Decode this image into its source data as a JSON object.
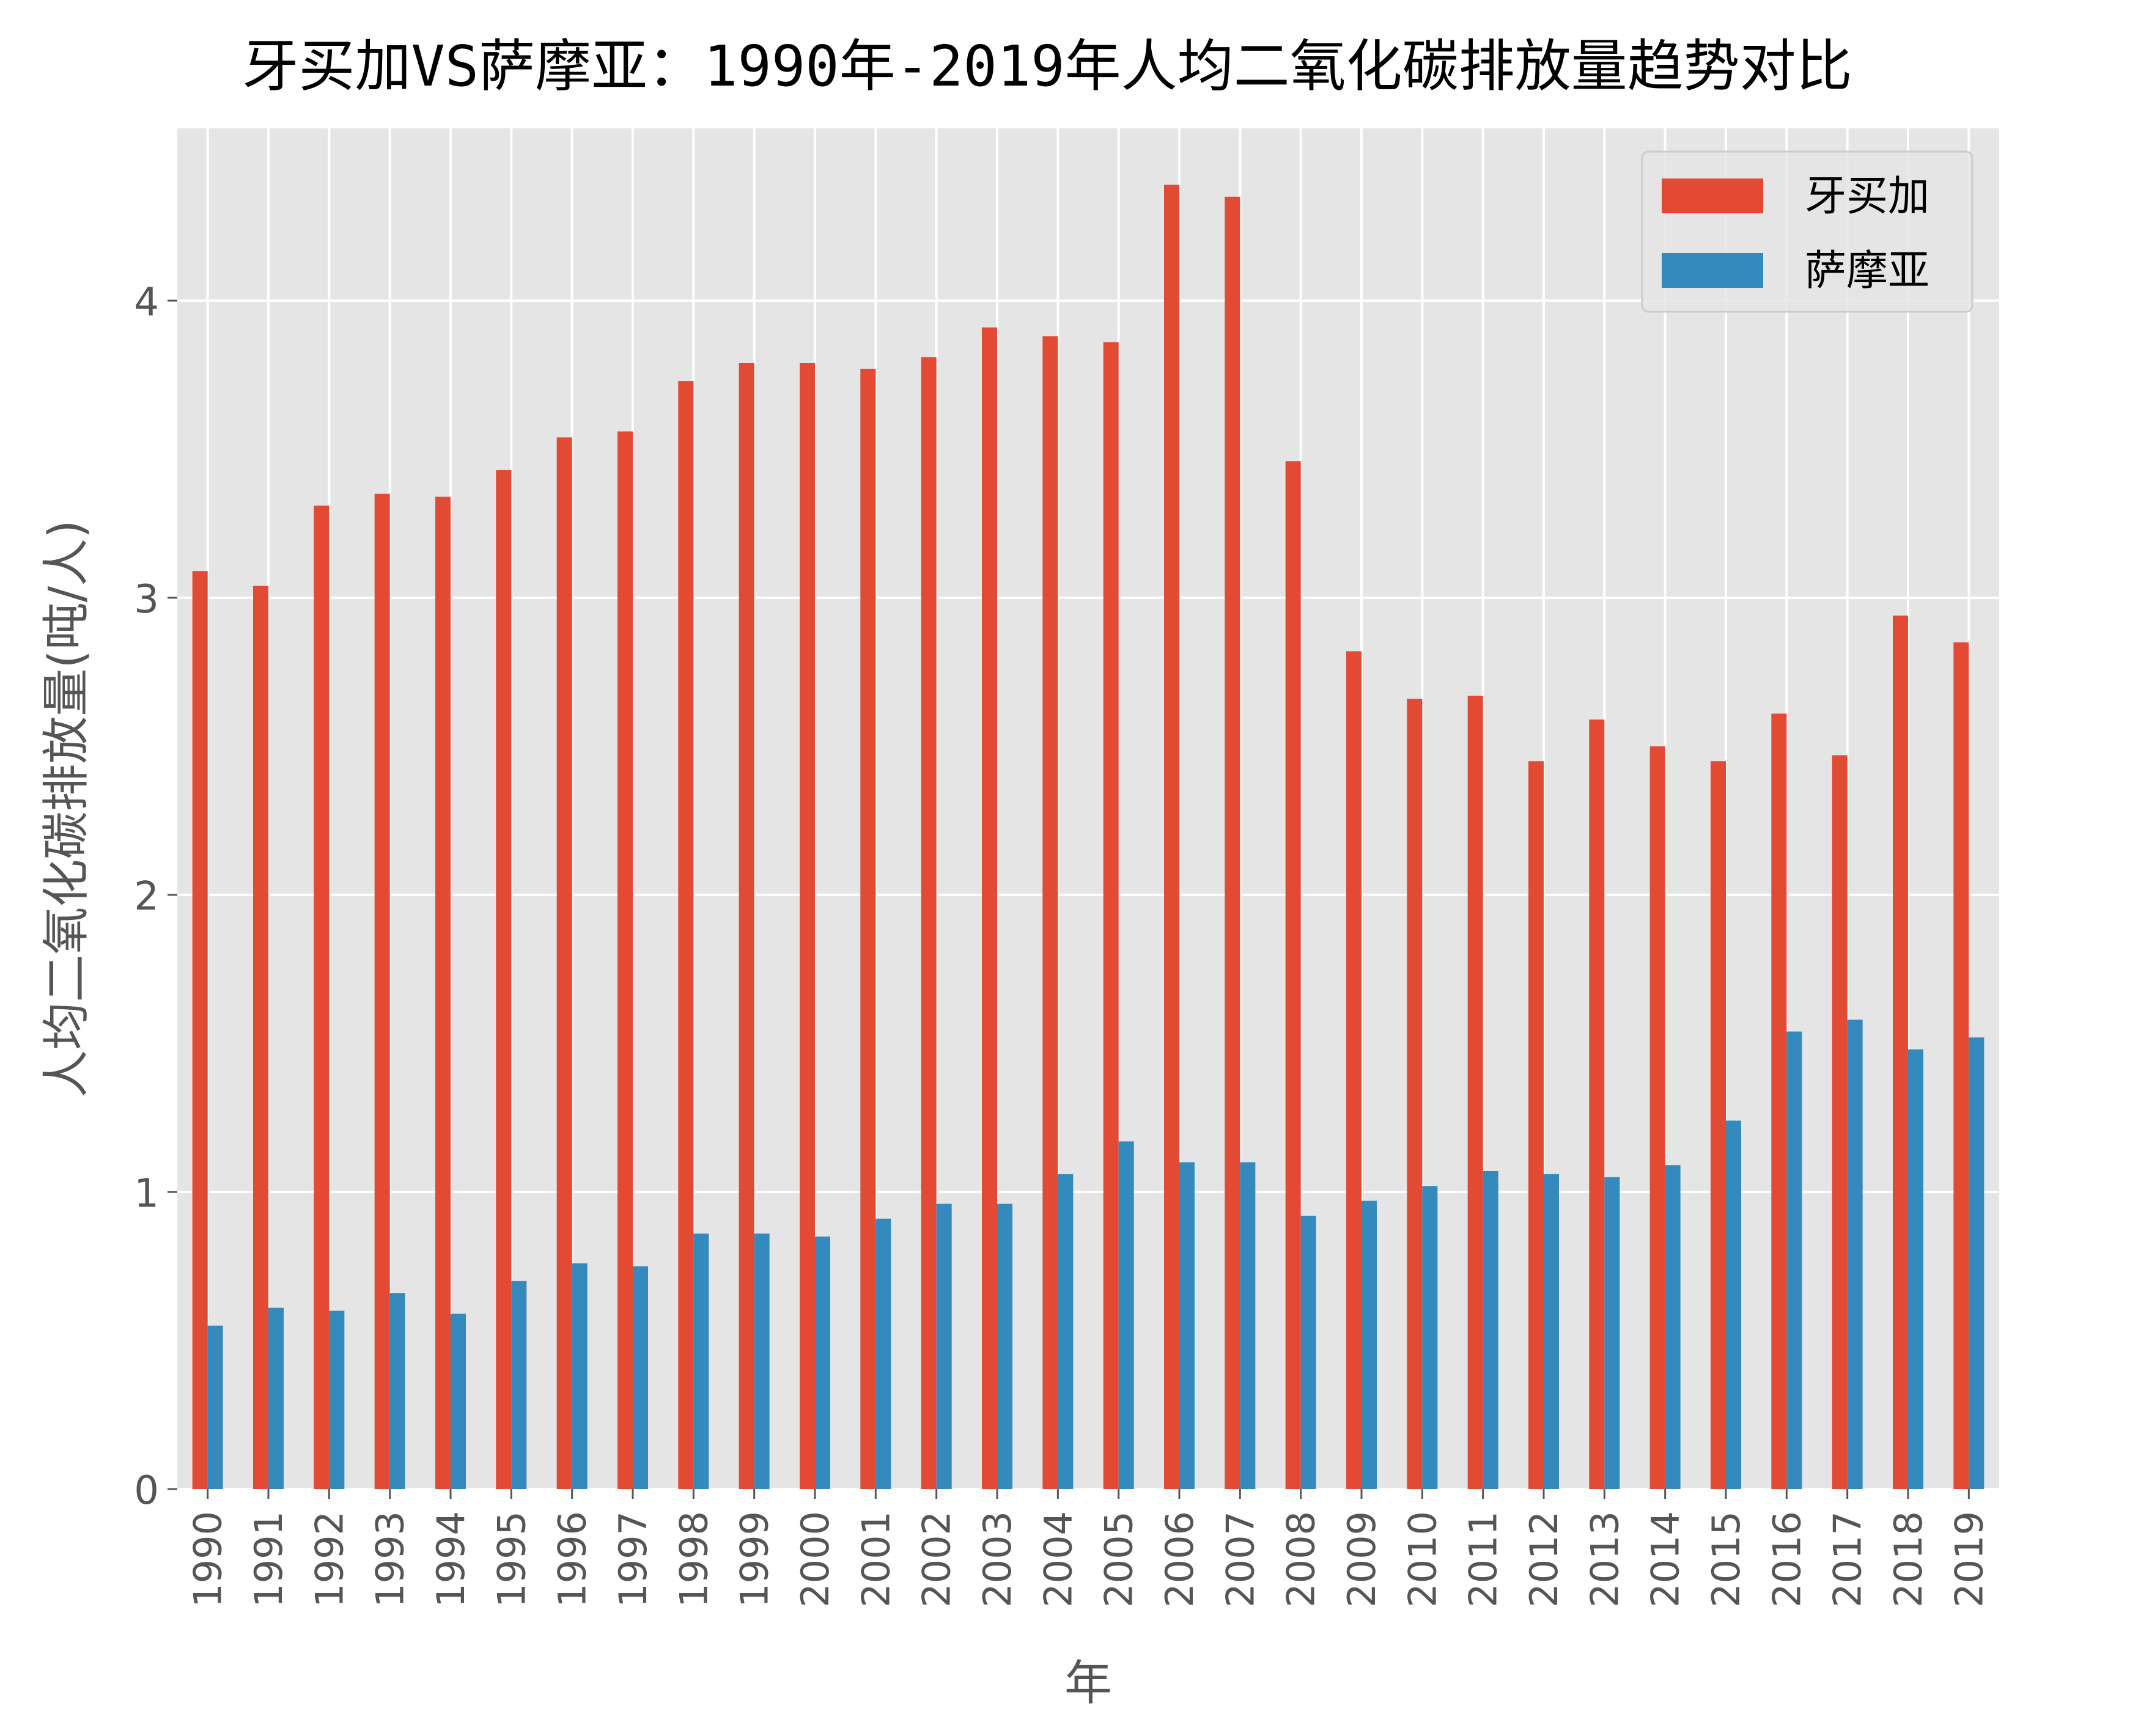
{
  "chart_data": {
    "type": "bar",
    "title": "牙买加VS萨摩亚：1990年-2019年人均二氧化碳排放量趋势对比",
    "xlabel": "年",
    "ylabel": "人均二氧化碳排放量(吨/人)",
    "categories": [
      "1990",
      "1991",
      "1992",
      "1993",
      "1994",
      "1995",
      "1996",
      "1997",
      "1998",
      "1999",
      "2000",
      "2001",
      "2002",
      "2003",
      "2004",
      "2005",
      "2006",
      "2007",
      "2008",
      "2009",
      "2010",
      "2011",
      "2012",
      "2013",
      "2014",
      "2015",
      "2016",
      "2017",
      "2018",
      "2019"
    ],
    "series": [
      {
        "name": "牙买加",
        "color": "#E24A33",
        "values": [
          3.09,
          3.04,
          3.31,
          3.35,
          3.34,
          3.43,
          3.54,
          3.56,
          3.73,
          3.79,
          3.79,
          3.77,
          3.81,
          3.91,
          3.88,
          3.86,
          4.39,
          4.35,
          3.46,
          2.82,
          2.66,
          2.67,
          2.45,
          2.59,
          2.5,
          2.45,
          2.61,
          2.47,
          2.94,
          2.85
        ]
      },
      {
        "name": "萨摩亚",
        "color": "#348ABD",
        "values": [
          0.55,
          0.61,
          0.6,
          0.66,
          0.59,
          0.7,
          0.76,
          0.75,
          0.86,
          0.86,
          0.85,
          0.91,
          0.96,
          0.96,
          1.06,
          1.17,
          1.1,
          1.1,
          0.92,
          0.97,
          1.02,
          1.07,
          1.06,
          1.05,
          1.09,
          1.24,
          1.54,
          1.58,
          1.48,
          1.52
        ]
      }
    ],
    "yticks": [
      "0",
      "1",
      "2",
      "3",
      "4"
    ],
    "ylim": [
      0,
      4.58
    ],
    "grid": true,
    "legend_position": "top-right",
    "background": "#E5E5E5"
  }
}
